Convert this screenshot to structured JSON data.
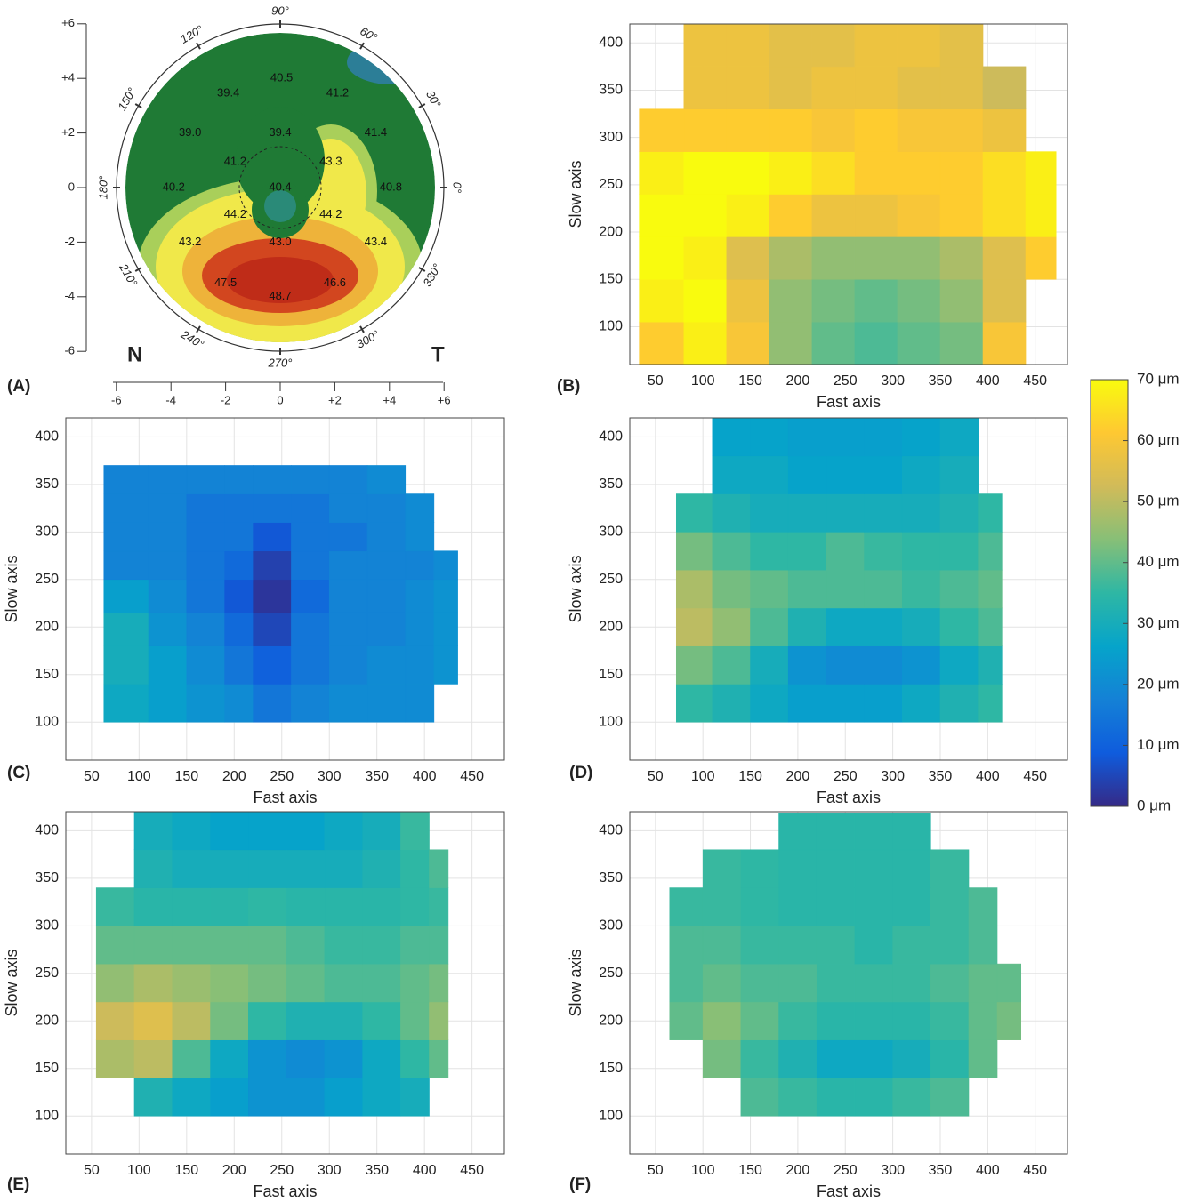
{
  "chart_data": [
    {
      "type": "topography",
      "panel_label": "(A)",
      "xlim": [
        -6,
        6
      ],
      "ylim": [
        -6,
        6
      ],
      "xticks": [
        -6,
        -4,
        -2,
        0,
        {
          "value": 2,
          "label": "+2"
        },
        {
          "value": 4,
          "label": "+4"
        },
        {
          "value": 6,
          "label": "+6"
        }
      ],
      "yticks": [
        {
          "value": 6,
          "label": "+6"
        },
        {
          "value": 4,
          "label": "+4"
        },
        {
          "value": 2,
          "label": "+2"
        },
        0,
        -2,
        -4,
        -6
      ],
      "angle_ticks": [
        {
          "value": 90,
          "label": "90°"
        },
        {
          "value": 60,
          "label": "60°"
        },
        {
          "value": 30,
          "label": "30°"
        },
        {
          "value": 0,
          "label": "0°"
        },
        {
          "value": 330,
          "label": "330°"
        },
        {
          "value": 300,
          "label": "300°"
        },
        {
          "value": 270,
          "label": "270°"
        },
        {
          "value": 240,
          "label": "240°"
        },
        {
          "value": 210,
          "label": "210°"
        },
        {
          "value": 180,
          "label": "180°"
        },
        {
          "value": 150,
          "label": "150°"
        },
        {
          "value": 120,
          "label": "120°"
        }
      ],
      "nasal_label": "N",
      "temporal_label": "T",
      "x": [
        0.05,
        -1.9,
        2.1,
        -3.3,
        0,
        3.5,
        -1.65,
        1.85,
        -3.9,
        0,
        4.05,
        -1.65,
        1.85,
        -3.3,
        0,
        3.5,
        -2.0,
        2.0,
        0
      ],
      "y": [
        4.0,
        3.45,
        3.45,
        2.0,
        2.0,
        2.0,
        0.95,
        0.95,
        0,
        0,
        0,
        -1.0,
        -1.0,
        -2.0,
        -2.0,
        -2.0,
        -3.5,
        -3.5,
        -4.0
      ],
      "values": [
        40.5,
        39.4,
        41.2,
        39.0,
        39.4,
        41.4,
        41.2,
        43.3,
        40.2,
        40.4,
        40.8,
        44.2,
        44.2,
        43.2,
        43.0,
        43.4,
        47.5,
        46.6,
        48.7
      ],
      "value_labels": [
        "40.5",
        "39.4",
        "41.2",
        "39.0",
        "39.4",
        "41.4",
        "41.2",
        "43.3",
        "40.2",
        "40.4",
        "40.8",
        "44.2",
        "44.2",
        "43.2",
        "43.0",
        "43.4",
        "47.5",
        "46.6",
        "48.7"
      ]
    },
    {
      "type": "heatmap",
      "panel_label": "(B)",
      "xlabel": "Fast axis",
      "ylabel": "Slow axis",
      "xlim": [
        23,
        484
      ],
      "ylim": [
        60,
        420
      ],
      "xticks": [
        50,
        100,
        150,
        200,
        250,
        300,
        350,
        400,
        450
      ],
      "yticks": [
        100,
        150,
        200,
        250,
        300,
        350,
        400
      ],
      "grid": true,
      "x_edges": [
        33,
        80,
        125,
        170,
        215,
        260,
        305,
        350,
        395,
        440,
        472
      ],
      "y_edges": [
        60,
        105,
        150,
        195,
        240,
        285,
        330,
        375,
        420
      ],
      "values": [
        [
          62,
          68,
          60,
          45,
          40,
          38,
          40,
          42,
          60,
          null
        ],
        [
          68,
          70,
          58,
          45,
          42,
          40,
          42,
          45,
          55,
          null
        ],
        [
          70,
          68,
          55,
          48,
          45,
          45,
          45,
          48,
          55,
          62
        ],
        [
          70,
          70,
          68,
          62,
          58,
          58,
          60,
          62,
          65,
          68
        ],
        [
          68,
          70,
          70,
          68,
          65,
          62,
          62,
          62,
          65,
          68
        ],
        [
          62,
          62,
          62,
          62,
          60,
          62,
          60,
          60,
          58,
          null
        ],
        [
          null,
          58,
          58,
          56,
          58,
          58,
          56,
          56,
          52,
          null
        ],
        [
          null,
          58,
          58,
          56,
          56,
          58,
          58,
          56,
          null,
          null
        ]
      ]
    },
    {
      "type": "heatmap",
      "panel_label": "(C)",
      "xlabel": "Fast axis",
      "ylabel": "Slow axis",
      "xlim": [
        23,
        484
      ],
      "ylim": [
        60,
        420
      ],
      "xticks": [
        50,
        100,
        150,
        200,
        250,
        300,
        350,
        400,
        450
      ],
      "yticks": [
        100,
        150,
        200,
        250,
        300,
        350,
        400
      ],
      "grid": true,
      "x_edges": [
        63,
        110,
        150,
        190,
        220,
        260,
        300,
        340,
        380,
        410,
        435
      ],
      "y_edges": [
        100,
        140,
        180,
        215,
        250,
        280,
        310,
        340,
        370
      ],
      "values": [
        [
          28,
          25,
          22,
          20,
          15,
          18,
          20,
          20,
          20,
          null
        ],
        [
          30,
          25,
          20,
          15,
          10,
          15,
          18,
          20,
          20,
          22
        ],
        [
          30,
          22,
          18,
          12,
          5,
          15,
          18,
          18,
          20,
          22
        ],
        [
          25,
          20,
          15,
          8,
          2,
          12,
          18,
          18,
          20,
          22
        ],
        [
          18,
          18,
          15,
          12,
          4,
          15,
          18,
          18,
          18,
          20
        ],
        [
          18,
          18,
          15,
          15,
          8,
          15,
          15,
          18,
          20,
          null
        ],
        [
          18,
          18,
          15,
          15,
          15,
          15,
          18,
          18,
          20,
          null
        ],
        [
          18,
          18,
          18,
          18,
          18,
          18,
          18,
          20,
          null,
          null
        ]
      ]
    },
    {
      "type": "heatmap",
      "panel_label": "(D)",
      "xlabel": "Fast axis",
      "ylabel": "Slow axis",
      "xlim": [
        23,
        484
      ],
      "ylim": [
        60,
        420
      ],
      "xticks": [
        50,
        100,
        150,
        200,
        250,
        300,
        350,
        400,
        450
      ],
      "yticks": [
        100,
        150,
        200,
        250,
        300,
        350,
        400
      ],
      "grid": true,
      "x_edges": [
        72,
        110,
        150,
        190,
        230,
        270,
        310,
        350,
        390,
        415
      ],
      "y_edges": [
        100,
        140,
        180,
        220,
        260,
        300,
        340,
        380,
        420
      ],
      "values": [
        [
          35,
          32,
          28,
          25,
          25,
          25,
          28,
          32,
          35
        ],
        [
          42,
          38,
          30,
          22,
          20,
          20,
          22,
          28,
          32
        ],
        [
          50,
          45,
          38,
          32,
          28,
          28,
          30,
          35,
          38
        ],
        [
          48,
          42,
          40,
          38,
          38,
          38,
          36,
          38,
          40
        ],
        [
          42,
          38,
          35,
          35,
          38,
          36,
          35,
          35,
          38
        ],
        [
          35,
          32,
          30,
          30,
          30,
          30,
          30,
          32,
          35
        ],
        [
          null,
          28,
          28,
          26,
          26,
          26,
          28,
          30,
          null
        ],
        [
          null,
          26,
          26,
          25,
          25,
          25,
          26,
          28,
          null
        ]
      ]
    },
    {
      "type": "heatmap",
      "panel_label": "(E)",
      "xlabel": "Fast axis",
      "ylabel": "Slow axis",
      "xlim": [
        23,
        484
      ],
      "ylim": [
        60,
        420
      ],
      "xticks": [
        50,
        100,
        150,
        200,
        250,
        300,
        350,
        400,
        450
      ],
      "yticks": [
        100,
        150,
        200,
        250,
        300,
        350,
        400
      ],
      "grid": true,
      "x_edges": [
        55,
        95,
        135,
        175,
        215,
        255,
        295,
        335,
        375,
        405,
        425
      ],
      "y_edges": [
        100,
        140,
        180,
        220,
        260,
        300,
        340,
        380,
        420
      ],
      "values": [
        [
          null,
          32,
          28,
          25,
          22,
          22,
          25,
          28,
          30,
          null
        ],
        [
          48,
          50,
          38,
          28,
          22,
          20,
          22,
          28,
          35,
          40
        ],
        [
          52,
          55,
          50,
          42,
          35,
          32,
          32,
          35,
          40,
          45
        ],
        [
          45,
          48,
          46,
          44,
          42,
          40,
          38,
          38,
          40,
          42
        ],
        [
          40,
          40,
          40,
          40,
          40,
          38,
          36,
          36,
          38,
          38
        ],
        [
          36,
          34,
          34,
          34,
          35,
          34,
          34,
          34,
          35,
          36
        ],
        [
          null,
          32,
          30,
          30,
          30,
          30,
          30,
          32,
          35,
          38
        ],
        [
          null,
          30,
          28,
          26,
          26,
          26,
          28,
          30,
          36,
          null
        ]
      ]
    },
    {
      "type": "heatmap",
      "panel_label": "(F)",
      "xlabel": "Fast axis",
      "ylabel": "Slow axis",
      "xlim": [
        23,
        484
      ],
      "ylim": [
        60,
        420
      ],
      "xticks": [
        50,
        100,
        150,
        200,
        250,
        300,
        350,
        400,
        450
      ],
      "yticks": [
        100,
        150,
        200,
        250,
        300,
        350,
        400
      ],
      "grid": true,
      "x_edges": [
        65,
        100,
        140,
        180,
        220,
        260,
        300,
        340,
        380,
        410,
        435
      ],
      "y_edges": [
        100,
        140,
        180,
        220,
        260,
        300,
        340,
        380,
        418
      ],
      "values": [
        [
          null,
          null,
          38,
          36,
          34,
          34,
          36,
          38,
          null,
          null
        ],
        [
          null,
          42,
          36,
          32,
          28,
          28,
          30,
          34,
          40,
          null
        ],
        [
          40,
          44,
          40,
          36,
          34,
          34,
          34,
          36,
          40,
          42
        ],
        [
          38,
          40,
          38,
          38,
          36,
          36,
          36,
          38,
          40,
          40
        ],
        [
          38,
          38,
          36,
          36,
          36,
          34,
          36,
          36,
          38,
          null
        ],
        [
          36,
          36,
          35,
          34,
          34,
          34,
          34,
          36,
          38,
          null
        ],
        [
          null,
          36,
          35,
          34,
          34,
          34,
          34,
          36,
          null,
          null
        ],
        [
          null,
          null,
          null,
          34,
          34,
          34,
          34,
          null,
          null,
          null
        ]
      ]
    },
    {
      "type": "colorbar",
      "lim": [
        0,
        70
      ],
      "ticks": [
        {
          "value": 70,
          "label": "70 μm"
        },
        {
          "value": 60,
          "label": "60 μm"
        },
        {
          "value": 50,
          "label": "50 μm"
        },
        {
          "value": 40,
          "label": "40 μm"
        },
        {
          "value": 30,
          "label": "30 μm"
        },
        {
          "value": 20,
          "label": "20 μm"
        },
        {
          "value": 10,
          "label": "10 μm"
        },
        {
          "value": 0,
          "label": "0 μm"
        }
      ],
      "colormap": [
        "#352a87",
        "#0f5cdd",
        "#1481d6",
        "#06a4ca",
        "#2eb7a4",
        "#87bf77",
        "#d1bb59",
        "#fec832",
        "#f9fb0e"
      ]
    }
  ]
}
